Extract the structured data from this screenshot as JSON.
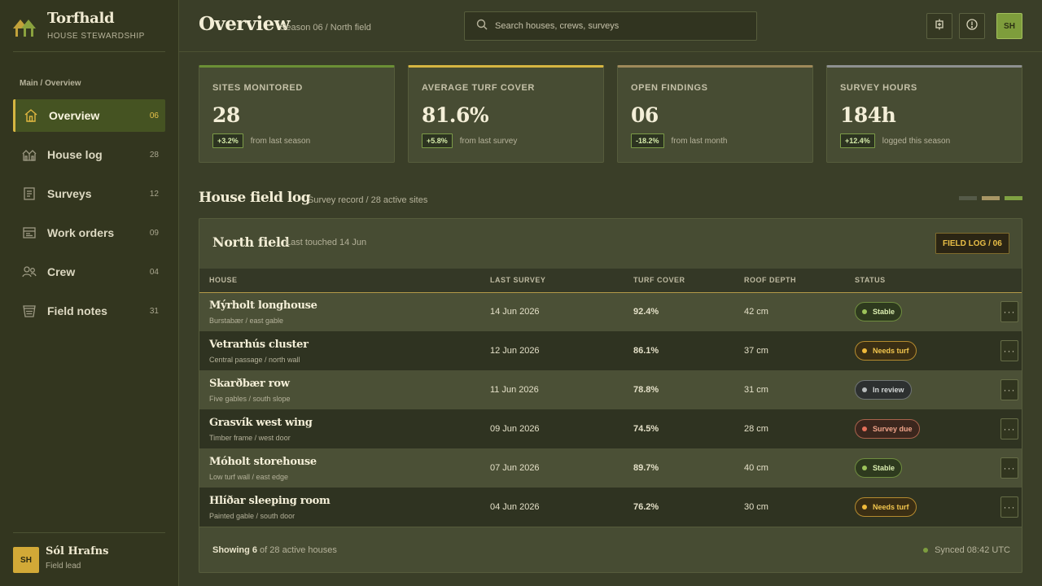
{
  "brand": {
    "name": "Torfhald",
    "subtitle": "HOUSE STEWARDSHIP"
  },
  "sidebar": {
    "breadcrumb": "Main / Overview",
    "items": [
      {
        "label": "Overview",
        "count": "06",
        "icon": "house-icon"
      },
      {
        "label": "House log",
        "count": "28",
        "icon": "village-icon"
      },
      {
        "label": "Surveys",
        "count": "12",
        "icon": "document-icon"
      },
      {
        "label": "Work orders",
        "count": "09",
        "icon": "clipboard-icon"
      },
      {
        "label": "Crew",
        "count": "04",
        "icon": "people-icon"
      },
      {
        "label": "Field notes",
        "count": "31",
        "icon": "notebook-icon"
      }
    ],
    "user": {
      "initials": "SH",
      "name": "Sól Hrafns",
      "role": "Field lead"
    }
  },
  "header": {
    "title": "Overview",
    "subtitle": "Season 06 / North field",
    "search_placeholder": "Search houses, crews, surveys",
    "user_initials": "SH"
  },
  "stats": [
    {
      "label": "SITES MONITORED",
      "value": "28",
      "delta": "+3.2%",
      "note": "from last season",
      "accent": "#6b8f35"
    },
    {
      "label": "AVERAGE TURF COVER",
      "value": "81.6%",
      "delta": "+5.8%",
      "note": "from last survey",
      "accent": "#d6b642"
    },
    {
      "label": "OPEN FINDINGS",
      "value": "06",
      "delta": "-18.2%",
      "note": "from last month",
      "accent": "#9f8a5a"
    },
    {
      "label": "SURVEY HOURS",
      "value": "184h",
      "delta": "+12.4%",
      "note": "logged this season",
      "accent": "#8e9090"
    }
  ],
  "section": {
    "title": "House field log",
    "subtitle": "Survey record / 28 active sites",
    "swatches": [
      "#555a48",
      "#a89665",
      "#7fa142"
    ]
  },
  "panel": {
    "title": "North field",
    "subtitle": "Last touched 14 Jun",
    "tag": "FIELD LOG / 06",
    "columns": [
      "HOUSE",
      "LAST SURVEY",
      "TURF COVER",
      "ROOF DEPTH",
      "STATUS"
    ],
    "rows": [
      {
        "name": "Mýrholt longhouse",
        "location": "Burstabær / east gable",
        "survey": "14 Jun 2026",
        "turf": "92.4%",
        "depth": "42 cm",
        "status": "Stable",
        "kind": "stable"
      },
      {
        "name": "Vetrarhús cluster",
        "location": "Central passage / north wall",
        "survey": "12 Jun 2026",
        "turf": "86.1%",
        "depth": "37 cm",
        "status": "Needs turf",
        "kind": "needs"
      },
      {
        "name": "Skarðbær row",
        "location": "Five gables / south slope",
        "survey": "11 Jun 2026",
        "turf": "78.8%",
        "depth": "31 cm",
        "status": "In review",
        "kind": "review"
      },
      {
        "name": "Grasvík west wing",
        "location": "Timber frame / west door",
        "survey": "09 Jun 2026",
        "turf": "74.5%",
        "depth": "28 cm",
        "status": "Survey due",
        "kind": "due"
      },
      {
        "name": "Móholt storehouse",
        "location": "Low turf wall / east edge",
        "survey": "07 Jun 2026",
        "turf": "89.7%",
        "depth": "40 cm",
        "status": "Stable",
        "kind": "stable"
      },
      {
        "name": "Hlíðar sleeping room",
        "location": "Painted gable / south door",
        "survey": "04 Jun 2026",
        "turf": "76.2%",
        "depth": "30 cm",
        "status": "Needs turf",
        "kind": "needs"
      }
    ],
    "footer": {
      "showing_strong": "Showing 6",
      "showing_rest": " of 28 active houses",
      "sync": "Synced 08:42 UTC"
    }
  },
  "status_colors": {
    "stable": {
      "bg": "#2e3a1e",
      "border": "#6f8c3f",
      "text": "#dcefb0",
      "dot": "#9cc35a"
    },
    "needs": {
      "bg": "#3a2e14",
      "border": "#b58b2f",
      "text": "#f3c64e",
      "dot": "#f0b93a"
    },
    "review": {
      "bg": "#2d3030",
      "border": "#6f7474",
      "text": "#d3d6d6",
      "dot": "#b8bcbc"
    },
    "due": {
      "bg": "#3b261d",
      "border": "#a8624c",
      "text": "#f0a48a",
      "dot": "#e4705a"
    }
  }
}
